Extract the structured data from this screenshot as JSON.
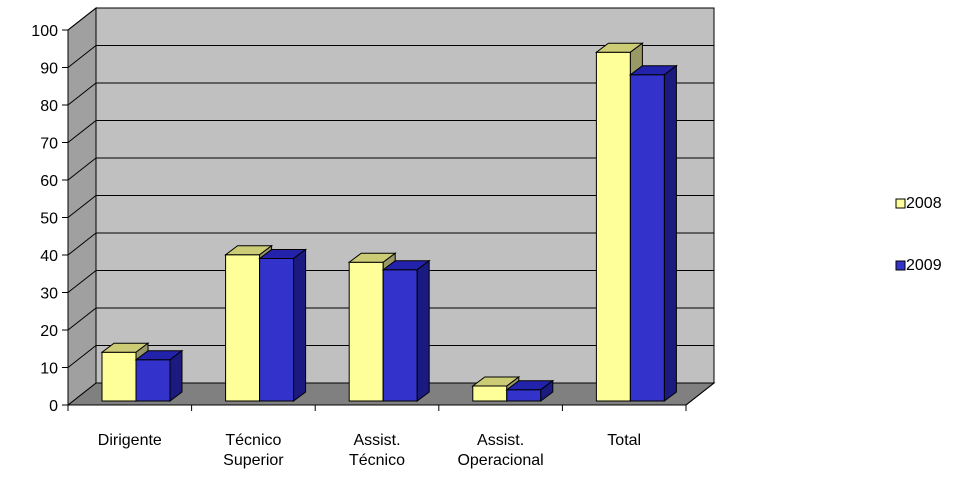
{
  "chart_data": {
    "type": "bar",
    "title": "",
    "xlabel": "",
    "ylabel": "",
    "categories": [
      [
        "Dirigente"
      ],
      [
        "Técnico",
        "Superior"
      ],
      [
        "Assist.",
        "Técnico"
      ],
      [
        "Assist.",
        "Operacional"
      ],
      [
        "Total"
      ]
    ],
    "series": [
      {
        "name": "2008",
        "values": [
          13,
          39,
          37,
          4,
          93
        ],
        "color": "#ffff99",
        "top_color": "#cccc77",
        "side_color": "#999966"
      },
      {
        "name": "2009",
        "values": [
          11,
          38,
          35,
          3,
          87
        ],
        "color": "#3333cc",
        "top_color": "#2222aa",
        "side_color": "#1a1a80"
      }
    ],
    "ylim": [
      0,
      100
    ],
    "yticks": [
      0,
      10,
      20,
      30,
      40,
      50,
      60,
      70,
      80,
      90,
      100
    ],
    "grid": true,
    "wall_color": "#c0c0c0",
    "floor_color": "#808080",
    "legend_position": "right"
  }
}
